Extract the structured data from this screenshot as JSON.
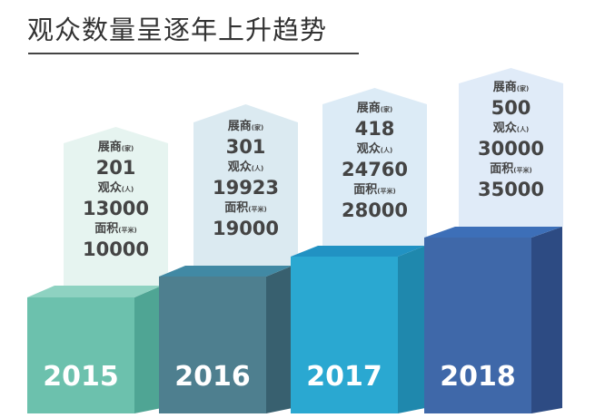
{
  "title": "观众数量呈逐年上升趋势",
  "labels": {
    "exhibitors": "展商",
    "exhibitors_unit": "(家)",
    "visitors": "观众",
    "visitors_unit": "(人)",
    "area": "面积",
    "area_unit": "(平米)"
  },
  "chart_data": {
    "type": "bar",
    "title": "观众数量呈逐年上升趋势",
    "categories": [
      "2015",
      "2016",
      "2017",
      "2018"
    ],
    "series": [
      {
        "name": "展商(家)",
        "values": [
          201,
          301,
          418,
          500
        ]
      },
      {
        "name": "观众(人)",
        "values": [
          13000,
          19923,
          24760,
          30000
        ]
      },
      {
        "name": "面积(平米)",
        "values": [
          10000,
          19000,
          28000,
          35000
        ]
      }
    ],
    "display_values": [
      [
        "201",
        "13000",
        "10000"
      ],
      [
        "301",
        "19923",
        "19000"
      ],
      [
        "418",
        "24760",
        "28000"
      ],
      [
        "500",
        "30000",
        "35000"
      ]
    ]
  },
  "colors": [
    {
      "front": "#6cc1ad",
      "side": "#4fa594",
      "top": "#8ed2c1",
      "callout": "#e6f4f0"
    },
    {
      "front": "#4e7f8f",
      "side": "#38606f",
      "top": "#4189a4",
      "callout": "#dbeaf1"
    },
    {
      "front": "#2aa8d1",
      "side": "#1f88ad",
      "top": "#2192c3",
      "callout": "#dcebf6"
    },
    {
      "front": "#3f68a9",
      "side": "#2d4b83",
      "top": "#3d6fb8",
      "callout": "#e0ebf8"
    }
  ]
}
